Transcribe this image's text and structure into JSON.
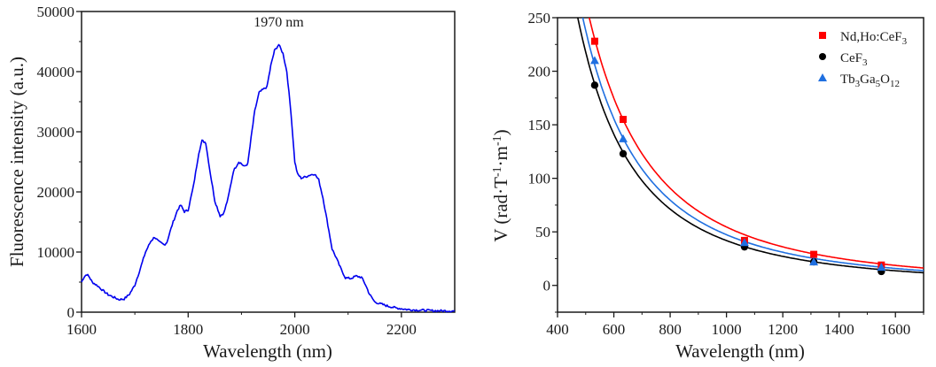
{
  "chart_data": [
    {
      "type": "line",
      "title": "",
      "xlabel": "Wavelength (nm)",
      "ylabel": "Fluorescence intensity (a.u.)",
      "xlim": [
        1600,
        2300
      ],
      "ylim": [
        0,
        50000
      ],
      "x_ticks": [
        1600,
        1800,
        2000,
        2200
      ],
      "x_tick_labels": [
        "1600",
        "1800",
        "2000",
        "2200"
      ],
      "y_ticks": [
        0,
        10000,
        20000,
        30000,
        40000,
        50000
      ],
      "y_tick_labels": [
        "0",
        "10000",
        "20000",
        "30000",
        "40000",
        "50000"
      ],
      "grid": false,
      "annotations": [
        {
          "text": "1970 nm",
          "x": 1970,
          "y": 47500
        }
      ],
      "series": [
        {
          "name": "fluorescence",
          "color": "#0000ee",
          "x": [
            1600,
            1605,
            1610,
            1615,
            1620,
            1630,
            1640,
            1650,
            1660,
            1670,
            1680,
            1690,
            1700,
            1710,
            1720,
            1730,
            1737,
            1745,
            1755,
            1760,
            1770,
            1780,
            1786,
            1793,
            1800,
            1810,
            1820,
            1826,
            1833,
            1840,
            1850,
            1860,
            1867,
            1875,
            1885,
            1895,
            1900,
            1905,
            1912,
            1918,
            1925,
            1933,
            1940,
            1948,
            1955,
            1962,
            1970,
            1978,
            1985,
            1993,
            2000,
            2005,
            2012,
            2020,
            2028,
            2037,
            2045,
            2053,
            2062,
            2070,
            2078,
            2085,
            2095,
            2105,
            2115,
            2125,
            2133,
            2140,
            2150,
            2160,
            2175,
            2190,
            2210,
            2230,
            2260,
            2300
          ],
          "y": [
            5000,
            5900,
            6300,
            5800,
            5000,
            4400,
            3600,
            2900,
            2500,
            2100,
            2200,
            3000,
            4500,
            7200,
            10000,
            11800,
            12500,
            11700,
            11200,
            11600,
            14500,
            17000,
            17800,
            16700,
            17000,
            21000,
            26500,
            28500,
            28200,
            24000,
            18500,
            16000,
            16500,
            19000,
            23500,
            25000,
            24700,
            24200,
            24700,
            29000,
            33500,
            36500,
            37000,
            37500,
            41000,
            43500,
            44500,
            43000,
            40000,
            33000,
            25000,
            23000,
            22300,
            22500,
            22800,
            23000,
            22000,
            19000,
            14500,
            10500,
            9000,
            7500,
            5700,
            5600,
            6000,
            5800,
            4500,
            3000,
            1700,
            1400,
            1000,
            700,
            450,
            350,
            250,
            200
          ]
        }
      ]
    },
    {
      "type": "scatter",
      "title": "",
      "xlabel": "Wavelength (nm)",
      "ylabel": "V (rad·T-1·m-1)",
      "xlim": [
        400,
        1700
      ],
      "ylim": [
        -25,
        250
      ],
      "x_ticks": [
        400,
        600,
        800,
        1000,
        1200,
        1400,
        1600
      ],
      "x_tick_labels": [
        "400",
        "600",
        "800",
        "1000",
        "1200",
        "1400",
        "1600"
      ],
      "y_ticks": [
        0,
        50,
        100,
        150,
        200,
        250
      ],
      "y_tick_labels": [
        "0",
        "50",
        "100",
        "150",
        "200",
        "250"
      ],
      "grid": false,
      "legend_position": "top-right",
      "fit": "power-law fit curves",
      "series": [
        {
          "name": "Nd,Ho:CeF3",
          "label_main": "Nd,Ho:CeF",
          "label_sub": "3",
          "marker": "square",
          "color": "#ff0000",
          "x": [
            532,
            633,
            1064,
            1310,
            1550
          ],
          "y": [
            228,
            155,
            42,
            29,
            19
          ],
          "fit_ref": [
            532,
            230
          ],
          "fit_exp": 2.28
        },
        {
          "name": "CeF3",
          "label_main": "CeF",
          "label_sub": "3",
          "marker": "circle",
          "color": "#000000",
          "x": [
            532,
            633,
            1064,
            1310,
            1550
          ],
          "y": [
            187,
            123,
            36,
            22,
            13
          ],
          "fit_ref": [
            532,
            188
          ],
          "fit_exp": 2.38
        },
        {
          "name": "Tb3Ga5O12",
          "label_parts": [
            "Tb",
            "3",
            "Ga",
            "5",
            "O",
            "12"
          ],
          "marker": "triangle",
          "color": "#1f6fe0",
          "x": [
            532,
            633,
            1064,
            1310,
            1550
          ],
          "y": [
            210,
            137,
            40,
            22,
            17
          ],
          "fit_ref": [
            532,
            206
          ],
          "fit_exp": 2.33
        }
      ]
    }
  ]
}
